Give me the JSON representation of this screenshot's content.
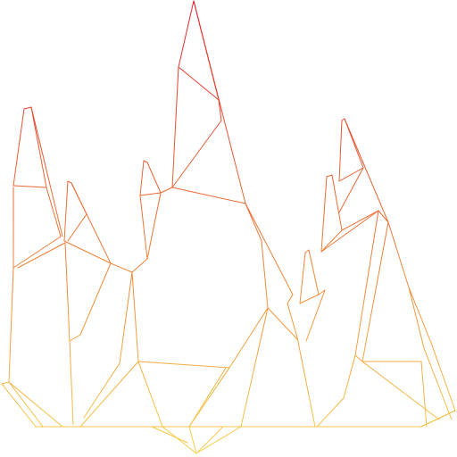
{
  "figure": {
    "subject": "wireframe-rock-spires",
    "style": "line-wireframe",
    "gradient": {
      "top_color": "#e0202e",
      "mid_color": "#f08a3a",
      "bottom_color": "#f6d24a"
    },
    "background_color": "#ffffff"
  }
}
